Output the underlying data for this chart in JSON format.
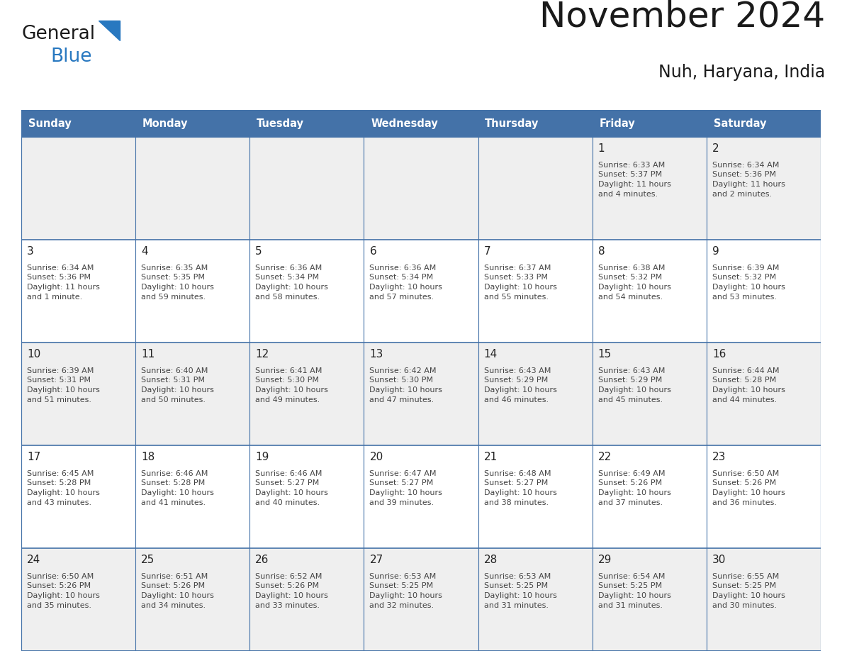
{
  "title": "November 2024",
  "subtitle": "Nuh, Haryana, India",
  "days_of_week": [
    "Sunday",
    "Monday",
    "Tuesday",
    "Wednesday",
    "Thursday",
    "Friday",
    "Saturday"
  ],
  "header_bg": "#4472a8",
  "header_text": "#ffffff",
  "cell_bg_even": "#efefef",
  "cell_bg_odd": "#ffffff",
  "cell_border": "#4472a8",
  "day_num_color": "#222222",
  "info_text_color": "#444444",
  "title_color": "#1a1a1a",
  "logo_general_color": "#1a1a1a",
  "logo_blue_color": "#2878c0",
  "calendar_data": [
    [
      null,
      null,
      null,
      null,
      null,
      {
        "day": "1",
        "sunrise": "6:33 AM",
        "sunset": "5:37 PM",
        "daylight": "11 hours\nand 4 minutes."
      },
      {
        "day": "2",
        "sunrise": "6:34 AM",
        "sunset": "5:36 PM",
        "daylight": "11 hours\nand 2 minutes."
      }
    ],
    [
      {
        "day": "3",
        "sunrise": "6:34 AM",
        "sunset": "5:36 PM",
        "daylight": "11 hours\nand 1 minute."
      },
      {
        "day": "4",
        "sunrise": "6:35 AM",
        "sunset": "5:35 PM",
        "daylight": "10 hours\nand 59 minutes."
      },
      {
        "day": "5",
        "sunrise": "6:36 AM",
        "sunset": "5:34 PM",
        "daylight": "10 hours\nand 58 minutes."
      },
      {
        "day": "6",
        "sunrise": "6:36 AM",
        "sunset": "5:34 PM",
        "daylight": "10 hours\nand 57 minutes."
      },
      {
        "day": "7",
        "sunrise": "6:37 AM",
        "sunset": "5:33 PM",
        "daylight": "10 hours\nand 55 minutes."
      },
      {
        "day": "8",
        "sunrise": "6:38 AM",
        "sunset": "5:32 PM",
        "daylight": "10 hours\nand 54 minutes."
      },
      {
        "day": "9",
        "sunrise": "6:39 AM",
        "sunset": "5:32 PM",
        "daylight": "10 hours\nand 53 minutes."
      }
    ],
    [
      {
        "day": "10",
        "sunrise": "6:39 AM",
        "sunset": "5:31 PM",
        "daylight": "10 hours\nand 51 minutes."
      },
      {
        "day": "11",
        "sunrise": "6:40 AM",
        "sunset": "5:31 PM",
        "daylight": "10 hours\nand 50 minutes."
      },
      {
        "day": "12",
        "sunrise": "6:41 AM",
        "sunset": "5:30 PM",
        "daylight": "10 hours\nand 49 minutes."
      },
      {
        "day": "13",
        "sunrise": "6:42 AM",
        "sunset": "5:30 PM",
        "daylight": "10 hours\nand 47 minutes."
      },
      {
        "day": "14",
        "sunrise": "6:43 AM",
        "sunset": "5:29 PM",
        "daylight": "10 hours\nand 46 minutes."
      },
      {
        "day": "15",
        "sunrise": "6:43 AM",
        "sunset": "5:29 PM",
        "daylight": "10 hours\nand 45 minutes."
      },
      {
        "day": "16",
        "sunrise": "6:44 AM",
        "sunset": "5:28 PM",
        "daylight": "10 hours\nand 44 minutes."
      }
    ],
    [
      {
        "day": "17",
        "sunrise": "6:45 AM",
        "sunset": "5:28 PM",
        "daylight": "10 hours\nand 43 minutes."
      },
      {
        "day": "18",
        "sunrise": "6:46 AM",
        "sunset": "5:28 PM",
        "daylight": "10 hours\nand 41 minutes."
      },
      {
        "day": "19",
        "sunrise": "6:46 AM",
        "sunset": "5:27 PM",
        "daylight": "10 hours\nand 40 minutes."
      },
      {
        "day": "20",
        "sunrise": "6:47 AM",
        "sunset": "5:27 PM",
        "daylight": "10 hours\nand 39 minutes."
      },
      {
        "day": "21",
        "sunrise": "6:48 AM",
        "sunset": "5:27 PM",
        "daylight": "10 hours\nand 38 minutes."
      },
      {
        "day": "22",
        "sunrise": "6:49 AM",
        "sunset": "5:26 PM",
        "daylight": "10 hours\nand 37 minutes."
      },
      {
        "day": "23",
        "sunrise": "6:50 AM",
        "sunset": "5:26 PM",
        "daylight": "10 hours\nand 36 minutes."
      }
    ],
    [
      {
        "day": "24",
        "sunrise": "6:50 AM",
        "sunset": "5:26 PM",
        "daylight": "10 hours\nand 35 minutes."
      },
      {
        "day": "25",
        "sunrise": "6:51 AM",
        "sunset": "5:26 PM",
        "daylight": "10 hours\nand 34 minutes."
      },
      {
        "day": "26",
        "sunrise": "6:52 AM",
        "sunset": "5:26 PM",
        "daylight": "10 hours\nand 33 minutes."
      },
      {
        "day": "27",
        "sunrise": "6:53 AM",
        "sunset": "5:25 PM",
        "daylight": "10 hours\nand 32 minutes."
      },
      {
        "day": "28",
        "sunrise": "6:53 AM",
        "sunset": "5:25 PM",
        "daylight": "10 hours\nand 31 minutes."
      },
      {
        "day": "29",
        "sunrise": "6:54 AM",
        "sunset": "5:25 PM",
        "daylight": "10 hours\nand 31 minutes."
      },
      {
        "day": "30",
        "sunrise": "6:55 AM",
        "sunset": "5:25 PM",
        "daylight": "10 hours\nand 30 minutes."
      }
    ]
  ],
  "figsize": [
    11.88,
    9.18
  ],
  "dpi": 100
}
